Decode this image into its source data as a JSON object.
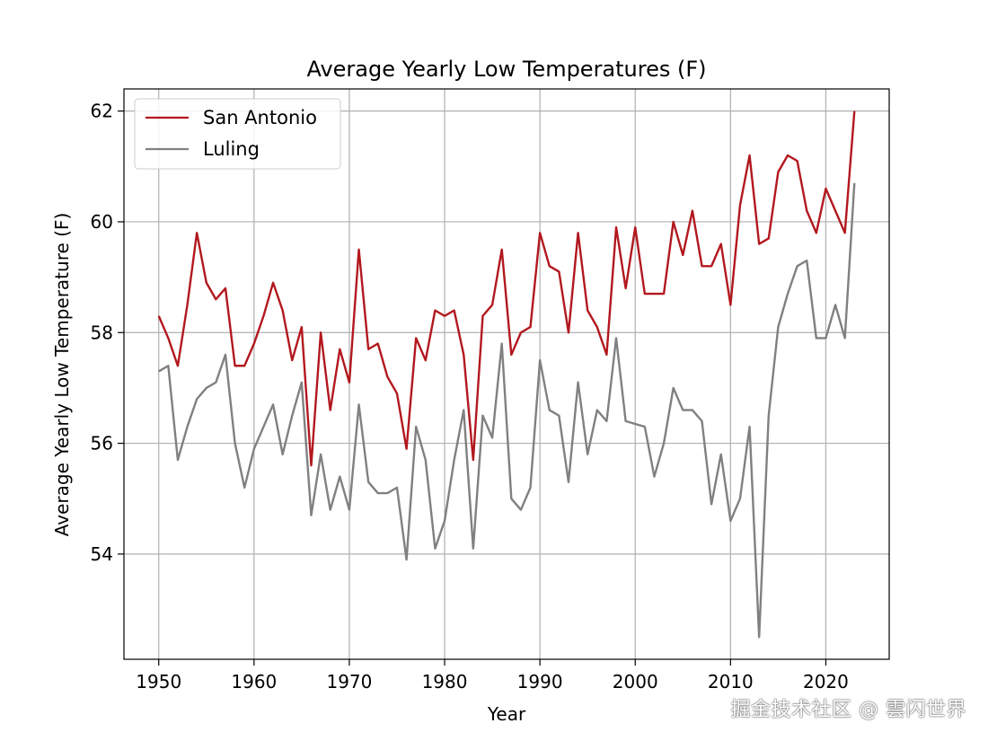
{
  "chart_data": {
    "type": "line",
    "title": "Average Yearly Low Temperatures (F)",
    "xlabel": "Year",
    "ylabel": "Average Yearly Low Temperature (F)",
    "xlim": [
      1946.35,
      1926.65
    ],
    "ylim": [
      52.1,
      62.4
    ],
    "xticks": [
      1950,
      1960,
      1970,
      1980,
      1990,
      2000,
      2010,
      2020
    ],
    "yticks": [
      54,
      56,
      58,
      60,
      62
    ],
    "grid": true,
    "legend": "top-left",
    "x": [
      1950,
      1951,
      1952,
      1953,
      1954,
      1955,
      1956,
      1957,
      1958,
      1959,
      1960,
      1961,
      1962,
      1963,
      1964,
      1965,
      1966,
      1967,
      1968,
      1969,
      1970,
      1971,
      1972,
      1973,
      1974,
      1975,
      1976,
      1977,
      1978,
      1979,
      1980,
      1981,
      1982,
      1983,
      1984,
      1985,
      1986,
      1987,
      1988,
      1989,
      1990,
      1991,
      1992,
      1993,
      1994,
      1995,
      1996,
      1997,
      1998,
      1999,
      2000,
      2001,
      2002,
      2003,
      2004,
      2005,
      2006,
      2007,
      2008,
      2009,
      2010,
      2011,
      2012,
      2013,
      2014,
      2015,
      2016,
      2017,
      2018,
      2019,
      2020,
      2021,
      2022,
      2023
    ],
    "series": [
      {
        "name": "San Antonio",
        "color": "#b2181e",
        "values": [
          58.3,
          57.9,
          57.4,
          58.5,
          59.8,
          58.9,
          58.6,
          58.8,
          57.4,
          57.4,
          57.8,
          58.3,
          58.9,
          58.4,
          57.5,
          58.1,
          55.6,
          58.0,
          56.6,
          57.7,
          57.1,
          59.5,
          57.7,
          57.8,
          57.2,
          56.9,
          55.9,
          57.9,
          57.5,
          58.4,
          58.3,
          58.4,
          57.6,
          55.7,
          58.3,
          58.5,
          59.5,
          57.6,
          58.0,
          58.1,
          59.8,
          59.2,
          59.1,
          58.0,
          59.8,
          58.4,
          58.1,
          57.6,
          59.9,
          58.8,
          59.9,
          58.7,
          58.7,
          58.7,
          60.0,
          59.4,
          60.2,
          59.2,
          59.2,
          59.6,
          58.5,
          60.3,
          61.2,
          59.6,
          59.7,
          60.9,
          61.2,
          61.1,
          60.2,
          59.8,
          60.6,
          60.2,
          59.8,
          62.0
        ]
      },
      {
        "name": "Luling",
        "color": "#808080",
        "values": [
          57.3,
          57.4,
          55.7,
          56.3,
          56.8,
          57.0,
          57.1,
          57.6,
          56.0,
          55.2,
          55.9,
          56.3,
          56.7,
          55.8,
          56.5,
          57.1,
          54.7,
          55.8,
          54.8,
          55.4,
          54.8,
          56.7,
          55.3,
          55.1,
          55.1,
          55.2,
          53.9,
          56.3,
          55.7,
          54.1,
          54.6,
          55.7,
          56.6,
          54.1,
          56.5,
          56.1,
          57.8,
          55.0,
          54.8,
          55.2,
          57.5,
          56.6,
          56.5,
          55.3,
          57.1,
          55.8,
          56.6,
          56.4,
          57.9,
          56.4,
          56.35,
          56.3,
          55.4,
          56.0,
          57.0,
          56.6,
          56.6,
          56.4,
          54.9,
          55.8,
          54.6,
          55.0,
          56.3,
          52.5,
          56.5,
          58.1,
          58.7,
          59.2,
          59.3,
          57.9,
          57.9,
          58.5,
          57.9,
          60.7
        ]
      }
    ]
  },
  "watermark": "掘金技术社区 @ 雲闪世界"
}
